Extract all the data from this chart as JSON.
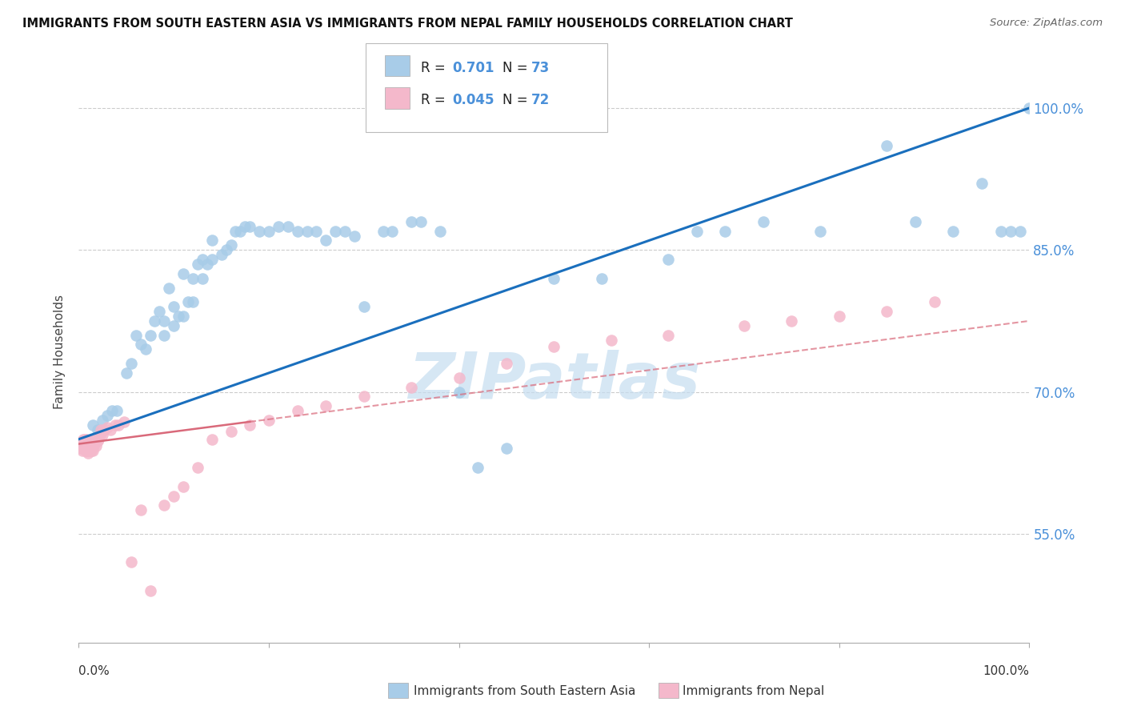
{
  "title": "IMMIGRANTS FROM SOUTH EASTERN ASIA VS IMMIGRANTS FROM NEPAL FAMILY HOUSEHOLDS CORRELATION CHART",
  "source": "Source: ZipAtlas.com",
  "ylabel": "Family Households",
  "ytick_values": [
    0.55,
    0.7,
    0.85,
    1.0
  ],
  "legend1_label": "Immigrants from South Eastern Asia",
  "legend2_label": "Immigrants from Nepal",
  "R1": "0.701",
  "N1": "73",
  "R2": "0.045",
  "N2": "72",
  "blue_color": "#a8cce8",
  "pink_color": "#f4b8cb",
  "line_blue": "#1a6fbd",
  "line_pink": "#d9697a",
  "watermark": "ZIPatlas",
  "watermark_color": "#c5ddf0",
  "blue_scatter_x": [
    0.015,
    0.02,
    0.025,
    0.03,
    0.035,
    0.04,
    0.05,
    0.055,
    0.06,
    0.065,
    0.07,
    0.075,
    0.08,
    0.085,
    0.09,
    0.09,
    0.095,
    0.1,
    0.1,
    0.105,
    0.11,
    0.11,
    0.115,
    0.12,
    0.12,
    0.125,
    0.13,
    0.13,
    0.135,
    0.14,
    0.14,
    0.15,
    0.155,
    0.16,
    0.165,
    0.17,
    0.175,
    0.18,
    0.19,
    0.2,
    0.21,
    0.22,
    0.23,
    0.24,
    0.25,
    0.26,
    0.27,
    0.28,
    0.29,
    0.3,
    0.32,
    0.33,
    0.35,
    0.36,
    0.38,
    0.4,
    0.42,
    0.45,
    0.5,
    0.55,
    0.62,
    0.65,
    0.68,
    0.72,
    0.78,
    0.85,
    0.88,
    0.92,
    0.95,
    0.97,
    0.98,
    0.99,
    1.0
  ],
  "blue_scatter_y": [
    0.665,
    0.66,
    0.67,
    0.675,
    0.68,
    0.68,
    0.72,
    0.73,
    0.76,
    0.75,
    0.745,
    0.76,
    0.775,
    0.785,
    0.76,
    0.775,
    0.81,
    0.77,
    0.79,
    0.78,
    0.78,
    0.825,
    0.795,
    0.795,
    0.82,
    0.835,
    0.82,
    0.84,
    0.835,
    0.84,
    0.86,
    0.845,
    0.85,
    0.855,
    0.87,
    0.87,
    0.875,
    0.875,
    0.87,
    0.87,
    0.875,
    0.875,
    0.87,
    0.87,
    0.87,
    0.86,
    0.87,
    0.87,
    0.865,
    0.79,
    0.87,
    0.87,
    0.88,
    0.88,
    0.87,
    0.7,
    0.62,
    0.64,
    0.82,
    0.82,
    0.84,
    0.87,
    0.87,
    0.88,
    0.87,
    0.96,
    0.88,
    0.87,
    0.92,
    0.87,
    0.87,
    0.87,
    1.0
  ],
  "pink_scatter_x": [
    0.002,
    0.003,
    0.004,
    0.004,
    0.005,
    0.005,
    0.005,
    0.006,
    0.006,
    0.006,
    0.007,
    0.007,
    0.007,
    0.008,
    0.008,
    0.008,
    0.009,
    0.009,
    0.009,
    0.01,
    0.01,
    0.01,
    0.011,
    0.011,
    0.012,
    0.012,
    0.013,
    0.013,
    0.014,
    0.014,
    0.015,
    0.015,
    0.016,
    0.017,
    0.018,
    0.019,
    0.02,
    0.021,
    0.022,
    0.023,
    0.025,
    0.027,
    0.03,
    0.033,
    0.038,
    0.042,
    0.048,
    0.055,
    0.065,
    0.075,
    0.09,
    0.1,
    0.11,
    0.125,
    0.14,
    0.16,
    0.18,
    0.2,
    0.23,
    0.26,
    0.3,
    0.35,
    0.4,
    0.45,
    0.5,
    0.56,
    0.62,
    0.7,
    0.75,
    0.8,
    0.85,
    0.9
  ],
  "pink_scatter_y": [
    0.64,
    0.645,
    0.648,
    0.638,
    0.64,
    0.645,
    0.65,
    0.64,
    0.643,
    0.65,
    0.638,
    0.643,
    0.648,
    0.638,
    0.643,
    0.65,
    0.638,
    0.643,
    0.648,
    0.635,
    0.64,
    0.648,
    0.638,
    0.645,
    0.64,
    0.648,
    0.638,
    0.645,
    0.64,
    0.648,
    0.638,
    0.648,
    0.643,
    0.648,
    0.643,
    0.65,
    0.648,
    0.65,
    0.655,
    0.66,
    0.655,
    0.66,
    0.662,
    0.66,
    0.665,
    0.665,
    0.668,
    0.52,
    0.575,
    0.49,
    0.58,
    0.59,
    0.6,
    0.62,
    0.65,
    0.658,
    0.665,
    0.67,
    0.68,
    0.685,
    0.695,
    0.705,
    0.715,
    0.73,
    0.748,
    0.755,
    0.76,
    0.77,
    0.775,
    0.78,
    0.785,
    0.795
  ],
  "xlim": [
    0.0,
    1.0
  ],
  "ylim": [
    0.435,
    1.05
  ],
  "blue_line_x0": 0.0,
  "blue_line_y0": 0.65,
  "blue_line_x1": 1.0,
  "blue_line_y1": 1.0,
  "pink_line_x0": 0.0,
  "pink_line_y0": 0.645,
  "pink_line_x1": 1.0,
  "pink_line_y1": 0.775
}
